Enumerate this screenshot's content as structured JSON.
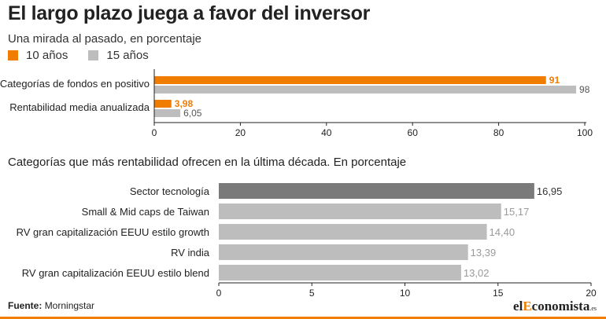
{
  "header": {
    "title": "El largo plazo juega a favor del inversor",
    "subtitle": "Una mirada al pasado, en porcentaje"
  },
  "colors": {
    "orange": "#f07c00",
    "gray": "#bdbdbd",
    "dark_gray": "#7a7a7a",
    "axis": "#222222"
  },
  "chart_data": [
    {
      "type": "bar",
      "orientation": "horizontal",
      "title": "Una mirada al pasado, en porcentaje",
      "categories": [
        "Categorías de fondos en positivo",
        "Rentabilidad media anualizada"
      ],
      "series": [
        {
          "name": "10 años",
          "values": [
            91,
            3.98
          ],
          "labels": [
            "91",
            "3,98"
          ],
          "color": "#f07c00"
        },
        {
          "name": "15 años",
          "values": [
            98,
            6.05
          ],
          "labels": [
            "98",
            "6,05"
          ],
          "color": "#bdbdbd"
        }
      ],
      "xlim": [
        0,
        100
      ],
      "xticks": [
        0,
        20,
        40,
        60,
        80,
        100
      ],
      "legend_position": "top-left",
      "grid": false
    },
    {
      "type": "bar",
      "orientation": "horizontal",
      "title": "Categorías que más rentabilidad ofrecen en la última década. En porcentaje",
      "categories": [
        "Sector tecnología",
        "Small & Mid caps de Taiwan",
        "RV gran capitalización EEUU estilo growth",
        "RV india",
        "RV gran capitalización EEUU estilo blend"
      ],
      "values": [
        16.95,
        15.17,
        14.4,
        13.39,
        13.02
      ],
      "labels": [
        "16,95",
        "15,17",
        "14,40",
        "13,39",
        "13,02"
      ],
      "highlight_index": 0,
      "xlim": [
        0,
        20
      ],
      "xticks": [
        0,
        5,
        10,
        15,
        20
      ],
      "grid": false
    }
  ],
  "footer": {
    "source_label": "Fuente:",
    "source_value": "Morningstar",
    "brand_prefix": "el",
    "brand_highlight": "E",
    "brand_rest": "conomista",
    "brand_suffix": ".es"
  }
}
